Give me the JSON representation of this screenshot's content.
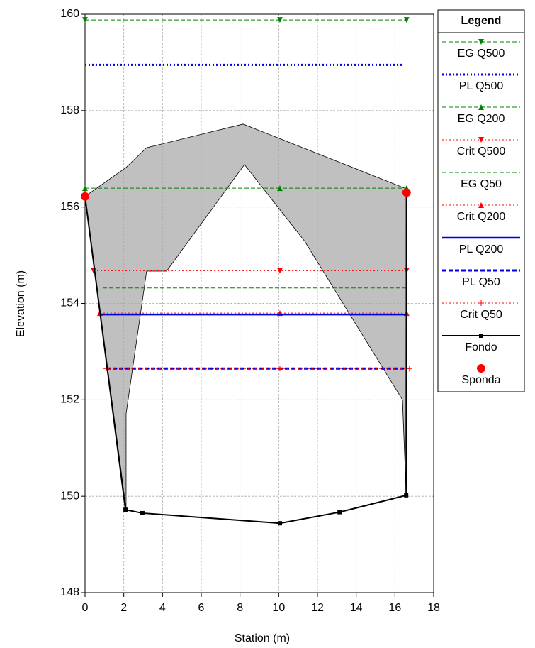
{
  "chart_data": {
    "type": "line",
    "xlabel": "Station (m)",
    "ylabel": "Elevation (m)",
    "xlim": [
      0,
      18
    ],
    "ylim": [
      148,
      160
    ],
    "xticks": [
      0,
      2,
      4,
      6,
      8,
      10,
      12,
      14,
      16,
      18
    ],
    "yticks": [
      148,
      150,
      152,
      154,
      156,
      158,
      160
    ],
    "grid": true,
    "legend_title": "Legend",
    "legend_position": "right",
    "shaded_area": {
      "color": "#c0c0c0",
      "x": [
        0,
        2.12,
        3.18,
        8.16,
        16.58,
        16.58,
        16.39,
        11.34,
        8.23,
        4.21,
        3.18,
        2.12,
        2.12
      ],
      "y": [
        156.22,
        156.82,
        157.23,
        157.72,
        156.38,
        150.02,
        152.0,
        155.29,
        156.88,
        154.67,
        154.67,
        151.71,
        149.74
      ]
    },
    "series": [
      {
        "name": "EG Q500",
        "color": "#008000",
        "line_style": "dashed",
        "line_width": 1,
        "marker": "triangle-down",
        "x": [
          0,
          10.06,
          16.6
        ],
        "values": [
          159.88,
          159.88,
          159.88
        ]
      },
      {
        "name": "PL Q500",
        "color": "#0000e0",
        "line_style": "dotted",
        "line_width": 3,
        "marker": "none",
        "x": [
          0,
          16.39
        ],
        "values": [
          158.95,
          158.95
        ]
      },
      {
        "name": "EG Q200",
        "color": "#008000",
        "line_style": "dashed",
        "line_width": 1,
        "marker": "triangle-up",
        "x": [
          0,
          10.06,
          16.6
        ],
        "values": [
          156.39,
          156.39,
          156.39
        ]
      },
      {
        "name": "Crit Q500",
        "color": "#ff0000",
        "line_style": "dotted",
        "line_width": 1,
        "marker": "triangle-down",
        "x": [
          0.44,
          10.06,
          16.6
        ],
        "values": [
          154.68,
          154.68,
          154.68
        ]
      },
      {
        "name": "EG Q50",
        "color": "#008000",
        "line_style": "dashed",
        "line_width": 1,
        "marker": "none",
        "x": [
          0.91,
          16.58
        ],
        "values": [
          154.32,
          154.32
        ]
      },
      {
        "name": "Crit Q200",
        "color": "#ff0000",
        "line_style": "dotted",
        "line_width": 1,
        "marker": "triangle-up",
        "x": [
          0.77,
          10.06,
          16.6
        ],
        "values": [
          153.8,
          153.8,
          153.8
        ]
      },
      {
        "name": "PL Q200",
        "color": "#0000e0",
        "line_style": "solid",
        "line_width": 2.5,
        "marker": "none",
        "x": [
          0.77,
          16.6
        ],
        "values": [
          153.77,
          153.77
        ]
      },
      {
        "name": "PL Q50",
        "color": "#0000e0",
        "line_style": "dashed",
        "line_width": 3,
        "marker": "none",
        "x": [
          1.1,
          16.58
        ],
        "values": [
          152.65,
          152.65
        ]
      },
      {
        "name": "Crit Q50",
        "color": "#ff0000",
        "line_style": "dotted",
        "line_width": 1,
        "marker": "plus",
        "x": [
          1.1,
          10.06,
          16.75
        ],
        "values": [
          152.65,
          152.65,
          152.65
        ]
      },
      {
        "name": "Fondo",
        "color": "#000000",
        "line_style": "solid",
        "line_width": 2,
        "marker": "square",
        "x": [
          0,
          2.09,
          2.96,
          10.06,
          13.14,
          16.58,
          16.6
        ],
        "values": [
          156.22,
          149.72,
          149.65,
          149.44,
          149.67,
          150.02,
          156.3
        ]
      },
      {
        "name": "Sponda",
        "color": "#ff0000",
        "line_style": "none",
        "line_width": 0,
        "marker": "circle",
        "x": [
          0,
          16.6
        ],
        "values": [
          156.22,
          156.3
        ]
      }
    ]
  }
}
